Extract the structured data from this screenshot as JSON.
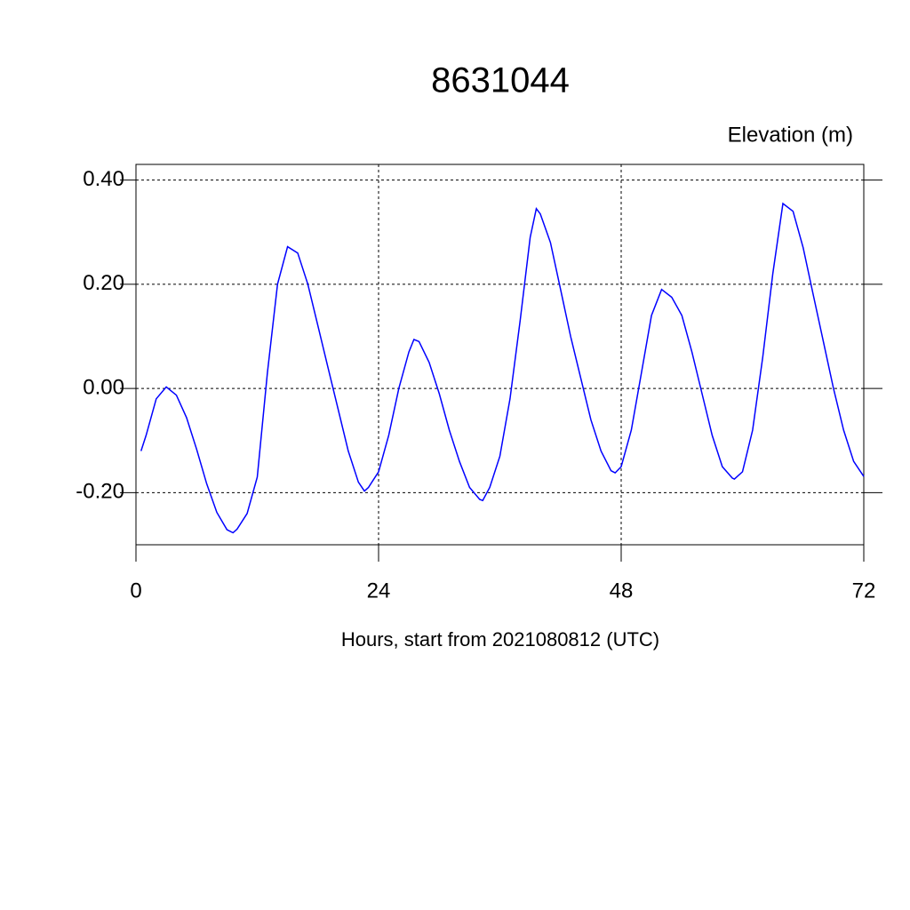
{
  "chart_data": {
    "type": "line",
    "title": "8631044",
    "subtitle": "Elevation (m)",
    "x_label": "Hours, start from 2021080812 (UTC)",
    "xlim": [
      0,
      72
    ],
    "xticks": [
      0,
      24,
      48,
      72
    ],
    "ylim": [
      -0.3,
      0.43
    ],
    "yticks": [
      {
        "value": -0.2,
        "label": "-0.20"
      },
      {
        "value": 0,
        "label": "0.00"
      },
      {
        "value": 0.2,
        "label": "0.20"
      },
      {
        "value": 0.4,
        "label": "0.40"
      }
    ],
    "grid": true,
    "x": [
      0.5,
      1,
      2,
      3,
      4,
      5,
      6,
      7,
      8,
      9,
      9.6,
      10,
      11,
      12,
      13,
      14,
      15,
      16,
      17,
      18,
      19,
      20,
      21,
      22,
      22.6,
      23,
      24,
      25,
      26,
      27,
      27.5,
      28,
      29,
      30,
      31,
      32,
      33,
      34,
      34.3,
      35,
      36,
      37,
      38,
      39,
      39.6,
      40,
      41,
      42,
      43,
      44,
      45,
      46,
      47,
      47.4,
      48,
      49,
      50,
      51,
      52,
      53,
      54,
      55,
      56,
      57,
      58,
      59,
      59.2,
      60,
      61,
      62,
      63,
      64,
      65,
      66,
      67,
      68,
      69,
      70,
      71,
      72
    ],
    "series": [
      {
        "name": "Elevation",
        "color": "#0000ff",
        "values": [
          -0.12,
          -0.09,
          -0.02,
          0.003,
          -0.013,
          -0.056,
          -0.117,
          -0.183,
          -0.238,
          -0.271,
          -0.277,
          -0.27,
          -0.24,
          -0.17,
          0.03,
          0.2,
          0.272,
          0.26,
          0.2,
          0.12,
          0.04,
          -0.04,
          -0.12,
          -0.18,
          -0.197,
          -0.19,
          -0.16,
          -0.09,
          0.0,
          0.07,
          0.094,
          0.09,
          0.05,
          -0.01,
          -0.08,
          -0.14,
          -0.19,
          -0.213,
          -0.215,
          -0.19,
          -0.13,
          -0.02,
          0.13,
          0.29,
          0.345,
          0.335,
          0.28,
          0.19,
          0.1,
          0.02,
          -0.06,
          -0.12,
          -0.158,
          -0.162,
          -0.15,
          -0.08,
          0.03,
          0.14,
          0.19,
          0.175,
          0.14,
          0.07,
          -0.01,
          -0.09,
          -0.15,
          -0.172,
          -0.174,
          -0.16,
          -0.08,
          0.06,
          0.22,
          0.355,
          0.34,
          0.27,
          0.18,
          0.09,
          0.0,
          -0.08,
          -0.14,
          -0.169
        ]
      }
    ]
  }
}
